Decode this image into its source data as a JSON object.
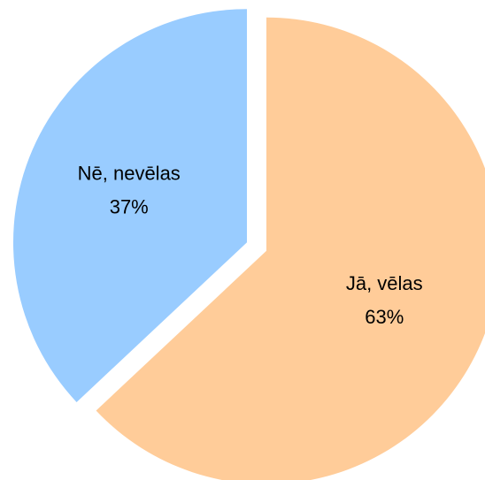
{
  "chart_data": {
    "type": "pie",
    "categories": [
      "Jā, vēlas",
      "Nē, nevēlas"
    ],
    "values": [
      63,
      37
    ],
    "value_labels": [
      "63%",
      "37%"
    ],
    "colors": [
      "#FFCC99",
      "#99CCFF"
    ]
  }
}
